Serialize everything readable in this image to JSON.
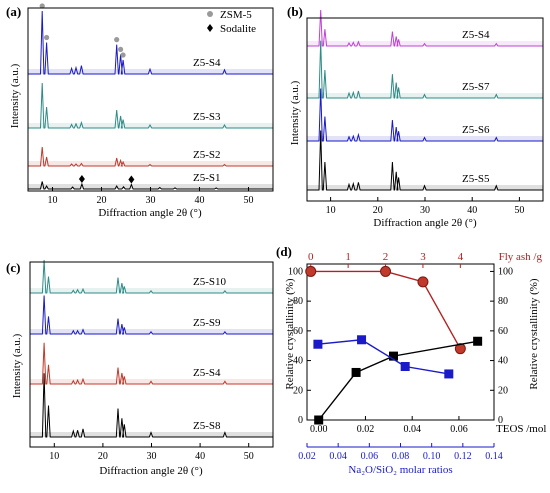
{
  "chart_data": [
    {
      "panel": "(a)",
      "type": "line",
      "xlabel": "Diffraction angle 2θ (°)",
      "ylabel": "Intensity (a.u.)",
      "xlim": [
        5,
        55
      ],
      "xticks": [
        10,
        20,
        30,
        40,
        50
      ],
      "legend": [
        {
          "symbol": "circle",
          "label": "ZSM-5",
          "color": "#9a9a9a"
        },
        {
          "symbol": "diamond",
          "label": "Sodalite",
          "color": "#000000"
        }
      ],
      "series": [
        {
          "name": "Z5-S4",
          "color": "#1a1ac8",
          "x": [
            7.9,
            8.8,
            13.9,
            14.8,
            15.9,
            23.1,
            23.9,
            24.4,
            29.9,
            45.1
          ],
          "y": [
            90,
            45,
            8,
            9,
            12,
            42,
            28,
            20,
            7,
            6
          ]
        },
        {
          "name": "Z5-S3",
          "color": "#2e8b87",
          "x": [
            7.9,
            8.8,
            13.9,
            14.8,
            15.9,
            23.1,
            23.9,
            24.4,
            29.9,
            45.1
          ],
          "y": [
            75,
            35,
            6,
            7,
            9,
            30,
            20,
            14,
            5,
            5
          ]
        },
        {
          "name": "Z5-S2",
          "color": "#c0392b",
          "x": [
            7.9,
            8.8,
            13.9,
            14.8,
            15.9,
            23.1,
            23.9,
            24.4,
            29.9,
            45.1
          ],
          "y": [
            38,
            18,
            4,
            4,
            5,
            16,
            11,
            8,
            3,
            3
          ]
        },
        {
          "name": "Z5-S1",
          "color": "#000000",
          "x": [
            7.9,
            8.8,
            14.1,
            16.0,
            23.1,
            24.5,
            26.1,
            31.9,
            35.0,
            43.4
          ],
          "y": [
            30,
            12,
            8,
            20,
            12,
            9,
            18,
            6,
            5,
            4
          ]
        }
      ],
      "markers": [
        {
          "symbol": "circle",
          "x": 7.9,
          "series": "Z5-S4"
        },
        {
          "symbol": "circle",
          "x": 8.8,
          "series": "Z5-S4"
        },
        {
          "symbol": "circle",
          "x": 23.1,
          "series": "Z5-S4"
        },
        {
          "symbol": "circle",
          "x": 23.9,
          "series": "Z5-S4"
        },
        {
          "symbol": "circle",
          "x": 24.4,
          "series": "Z5-S4"
        },
        {
          "symbol": "diamond",
          "x": 16.0,
          "series": "Z5-S1"
        },
        {
          "symbol": "diamond",
          "x": 26.1,
          "series": "Z5-S1"
        }
      ]
    },
    {
      "panel": "(b)",
      "type": "line",
      "xlabel": "Diffraction angle 2θ (°)",
      "ylabel": "Intensity (a.u.)",
      "xlim": [
        5,
        55
      ],
      "xticks": [
        10,
        20,
        30,
        40,
        50
      ],
      "series": [
        {
          "name": "Z5-S4",
          "color": "#c040d8",
          "x": [
            7.9,
            8.8,
            13.9,
            14.8,
            15.9,
            23.1,
            23.9,
            24.4,
            29.9,
            45.1
          ],
          "y": [
            60,
            28,
            5,
            6,
            7,
            24,
            16,
            11,
            4,
            4
          ]
        },
        {
          "name": "Z5-S7",
          "color": "#2e8b87",
          "x": [
            7.9,
            8.8,
            13.9,
            14.8,
            15.9,
            23.1,
            23.9,
            24.4,
            29.9,
            45.1
          ],
          "y": [
            82,
            40,
            7,
            8,
            10,
            34,
            22,
            15,
            5,
            5
          ]
        },
        {
          "name": "Z5-S6",
          "color": "#1a1ac8",
          "x": [
            7.9,
            8.8,
            13.9,
            14.8,
            15.9,
            23.1,
            23.9,
            24.4,
            29.9,
            45.1
          ],
          "y": [
            75,
            35,
            6,
            7,
            9,
            30,
            20,
            14,
            5,
            5
          ]
        },
        {
          "name": "Z5-S5",
          "color": "#000000",
          "x": [
            7.9,
            8.8,
            13.9,
            14.8,
            15.9,
            23.1,
            23.9,
            24.4,
            29.9,
            45.1
          ],
          "y": [
            85,
            40,
            8,
            9,
            11,
            40,
            26,
            18,
            6,
            6
          ]
        }
      ]
    },
    {
      "panel": "(c)",
      "type": "line",
      "xlabel": "Diffraction angle 2θ (°)",
      "ylabel": "Intensity (a.u.)",
      "xlim": [
        5,
        55
      ],
      "xticks": [
        10,
        20,
        30,
        40,
        50
      ],
      "series": [
        {
          "name": "Z5-S10",
          "color": "#2e8b87",
          "x": [
            7.9,
            8.8,
            13.9,
            14.8,
            15.9,
            23.1,
            23.9,
            24.4,
            29.9,
            45.1
          ],
          "y": [
            60,
            30,
            5,
            6,
            7,
            28,
            18,
            12,
            4,
            4
          ]
        },
        {
          "name": "Z5-S9",
          "color": "#1a1ac8",
          "x": [
            7.9,
            8.8,
            13.9,
            14.8,
            15.9,
            23.1,
            23.9,
            24.4,
            29.9,
            45.1
          ],
          "y": [
            70,
            32,
            6,
            6,
            8,
            28,
            18,
            12,
            4,
            4
          ]
        },
        {
          "name": "Z5-S4",
          "color": "#c0392b",
          "x": [
            7.9,
            8.8,
            13.9,
            14.8,
            15.9,
            23.1,
            23.9,
            24.4,
            29.9,
            45.1
          ],
          "y": [
            75,
            35,
            6,
            7,
            9,
            30,
            20,
            14,
            5,
            5
          ]
        },
        {
          "name": "Z5-S8",
          "color": "#000000",
          "x": [
            7.9,
            8.8,
            13.9,
            14.8,
            15.9,
            23.1,
            23.9,
            24.4,
            29.9,
            45.1
          ],
          "y": [
            85,
            42,
            8,
            9,
            11,
            38,
            25,
            17,
            6,
            6
          ]
        }
      ]
    },
    {
      "panel": "(d)",
      "type": "line",
      "ylabel": "Relative crystallinity (%)",
      "ylabel_right": "Relative crystallinity (%)",
      "ylim": [
        0,
        105
      ],
      "yticks": [
        0,
        20,
        40,
        60,
        80,
        100
      ],
      "x_bottom_main": {
        "label": "TEOS /mol",
        "lim": [
          -0.005,
          0.075
        ],
        "ticks": [
          0.0,
          0.02,
          0.04,
          0.06
        ]
      },
      "x_bottom_blue": {
        "label": "Na₂O/SiO₂ molar ratios",
        "lim": [
          0.02,
          0.14
        ],
        "ticks": [
          0.02,
          0.04,
          0.06,
          0.08,
          0.1,
          0.12,
          0.14
        ],
        "color": "#1a1ac8"
      },
      "x_top": {
        "label": "Fly ash /g",
        "lim": [
          -0.1,
          4.9
        ],
        "ticks": [
          0,
          1,
          2,
          3,
          4
        ],
        "color": "#b22222"
      },
      "series": [
        {
          "axis": "fly_ash",
          "color": "#b22222",
          "marker": "circle",
          "x": [
            0,
            2,
            3,
            4
          ],
          "y": [
            100,
            100,
            93,
            48
          ]
        },
        {
          "axis": "teos",
          "color": "#000000",
          "marker": "square",
          "x": [
            0.0,
            0.016,
            0.032,
            0.068
          ],
          "y": [
            0,
            32,
            43,
            53
          ]
        },
        {
          "axis": "na2o",
          "color": "#1a1ac8",
          "marker": "square",
          "x": [
            0.027,
            0.055,
            0.083,
            0.111
          ],
          "y": [
            51,
            54,
            36,
            31
          ]
        }
      ]
    }
  ]
}
